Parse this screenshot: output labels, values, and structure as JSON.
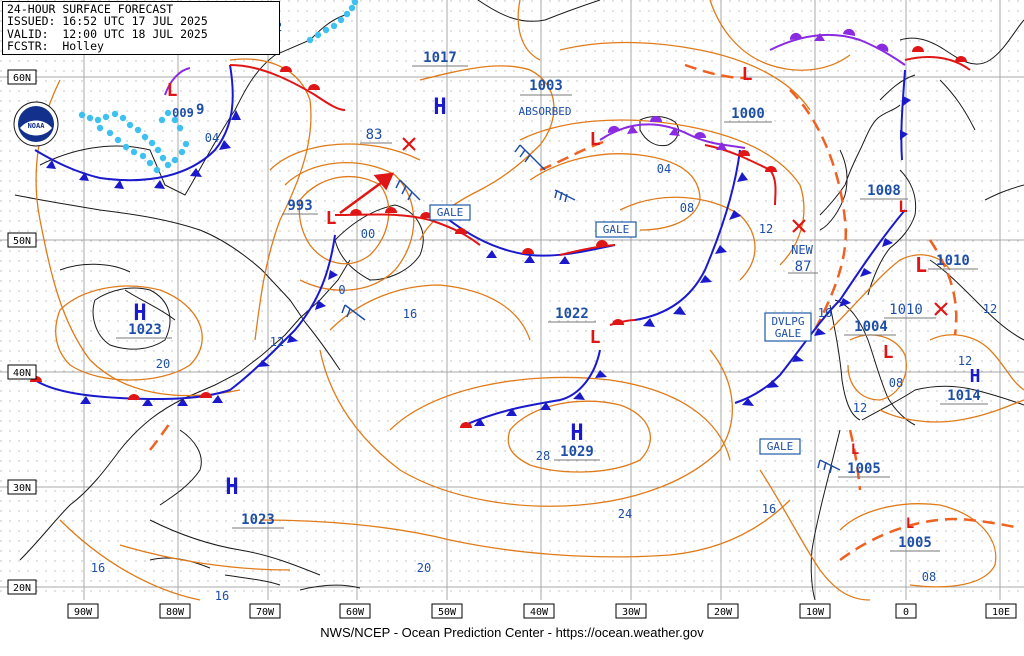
{
  "header": {
    "title": "24-HOUR SURFACE FORECAST",
    "issued": "ISSUED: 16:52 UTC 17 JUL 2025",
    "valid": "VALID:  12:00 UTC 18 JUL 2025",
    "forecaster": "FCSTR:  Holley"
  },
  "footer": "NWS/NCEP - Ocean Prediction Center - https://ocean.weather.gov",
  "lat_labels": [
    "60N",
    "50N",
    "40N",
    "30N",
    "20N"
  ],
  "lon_labels": [
    "90W",
    "80W",
    "70W",
    "60W",
    "50W",
    "40W",
    "30W",
    "20W",
    "10W",
    "0",
    "10E"
  ],
  "highs": [
    {
      "id": "h-greatlakes",
      "letter": "H",
      "value": "1023"
    },
    {
      "id": "h-central-atlantic",
      "letter": "H",
      "value": "1029"
    },
    {
      "id": "h-southwest",
      "letter": "H",
      "value": "1023"
    },
    {
      "id": "h-north",
      "letter": "H",
      "value": "1017"
    },
    {
      "id": "h-iberia",
      "letter": "H",
      "value": "1014"
    }
  ],
  "lows": [
    {
      "id": "l-newfoundland",
      "letter": "L",
      "value": "993"
    },
    {
      "id": "l-north-atlantic",
      "letter": "L",
      "value": "1003"
    },
    {
      "id": "l-iceland",
      "letter": "L",
      "value": "1000"
    },
    {
      "id": "l-midatlantic",
      "letter": "L",
      "value": "1022"
    },
    {
      "id": "l-uk",
      "letter": "L",
      "value": "1008"
    },
    {
      "id": "l-france",
      "letter": "L",
      "value": "1010"
    },
    {
      "id": "l-biscay",
      "letter": "L",
      "value": "1004"
    },
    {
      "id": "l-canaries",
      "letter": "L",
      "value": "1005"
    },
    {
      "id": "l-sahara",
      "letter": "L",
      "value": "1005"
    },
    {
      "id": "l-hudson",
      "letter": "L",
      "value": ""
    }
  ],
  "annotations": {
    "absorbed": "ABSORBED",
    "new": "NEW",
    "new_value": "87",
    "moving_low": "83",
    "biscay_x_value": "1010",
    "hudson_value": "009"
  },
  "warnings": {
    "gale_1": "GALE",
    "gale_2": "GALE",
    "gale_3": "GALE",
    "dvlpg_1": "DVLPG",
    "dvlpg_2": "GALE"
  },
  "isobar_labels": {
    "i12_top": "12",
    "i04_hudson": "04",
    "i00_nf": "00",
    "i0_nf": "0",
    "i16_mid": "16",
    "i12_east_us": "12",
    "i20_gl": "20",
    "i04_atl": "04",
    "i08_atl": "08",
    "i12_atl": "12",
    "i16_iberia": "16",
    "i12_iberia": "12",
    "i08_iberia": "08",
    "i12_east": "12",
    "i12_med": "12",
    "i28": "28",
    "i24": "24",
    "i16_africa": "16",
    "i20_south": "20",
    "i16_carib": "16",
    "i16_cuba": "16",
    "i08_africa": "08"
  },
  "colors": {
    "isobar": "#e07b1a",
    "cold_front": "#1a1acc",
    "warm_front": "#e01515",
    "occluded_front": "#8a2be2",
    "trough": "#f06020",
    "ice": "#3ec0f0",
    "pressure_text": "#1e4fa8",
    "label_box": "#1e5aa8",
    "grid": "#a8a8a8",
    "coast": "#1a1a1a"
  },
  "logo_text": "NOAA"
}
